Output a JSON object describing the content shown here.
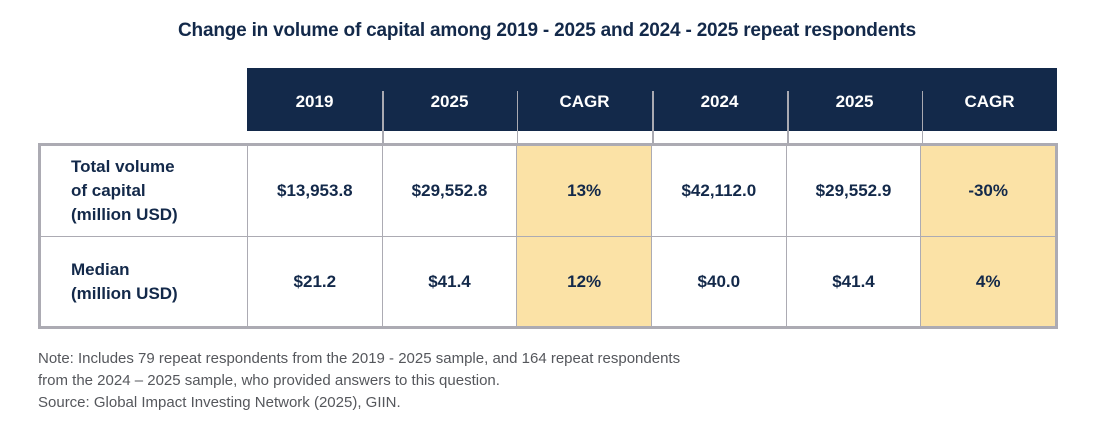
{
  "title": "Change in volume of capital among 2019 - 2025 and 2024 - 2025 repeat respondents",
  "header_columns": [
    "2019",
    "2025",
    "CAGR",
    "2024",
    "2025",
    "CAGR"
  ],
  "rows": [
    {
      "label": "Total volume\nof capital\n(million USD)",
      "values": [
        "$13,953.8",
        "$29,552.8",
        "13%",
        "$42,112.0",
        "$29,552.9",
        "-30%"
      ]
    },
    {
      "label": "Median\n(million USD)",
      "values": [
        "$21.2",
        "$41.4",
        "12%",
        "$40.0",
        "$41.4",
        "4%"
      ]
    }
  ],
  "note_lines": [
    "Note: Includes 79 repeat respondents from the 2019 - 2025 sample, and 164 repeat respondents",
    "from the 2024 – 2025 sample, who provided answers to this question.",
    "Source: Global Impact Investing Network (2025), GIIN."
  ],
  "colors": {
    "navy": "#13294A",
    "highlight": "#FBE2A6",
    "border": "#ACABB3",
    "divider": "#A9A9B1",
    "note": "#55575C"
  },
  "chart_data": {
    "type": "table",
    "title": "Change in volume of capital among 2019 - 2025 and 2024 - 2025 repeat respondents",
    "columns": [
      "",
      "2019",
      "2025",
      "CAGR",
      "2024",
      "2025",
      "CAGR"
    ],
    "rows": [
      [
        "Total volume of capital (million USD)",
        "$13,953.8",
        "$29,552.8",
        "13%",
        "$42,112.0",
        "$29,552.9",
        "-30%"
      ],
      [
        "Median (million USD)",
        "$21.2",
        "$41.4",
        "12%",
        "$40.0",
        "$41.4",
        "4%"
      ]
    ],
    "highlighted_columns": [
      3,
      6
    ],
    "highlight_meaning": "CAGR columns shaded cream",
    "note": "Note: Includes 79 repeat respondents from the 2019 - 2025 sample, and 164 repeat respondents from the 2024 – 2025 sample, who provided answers to this question.",
    "source": "Global Impact Investing Network (2025), GIIN."
  }
}
